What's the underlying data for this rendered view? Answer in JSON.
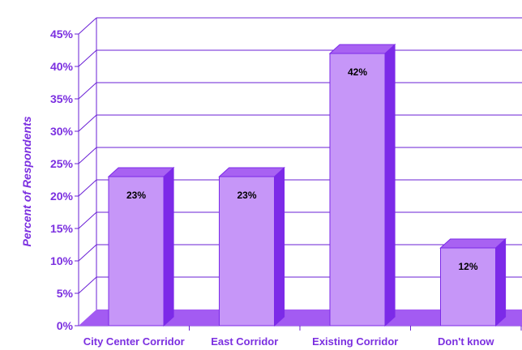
{
  "chart_data": {
    "type": "bar",
    "title": "",
    "xlabel": "",
    "ylabel": "Percent of Respondents",
    "categories": [
      "City Center Corridor",
      "East Corridor",
      "Existing Corridor",
      "Don't know"
    ],
    "values": [
      23,
      23,
      42,
      12
    ],
    "data_labels": [
      "23%",
      "23%",
      "42%",
      "12%"
    ],
    "ylim": [
      0,
      45
    ],
    "yticks": [
      0,
      5,
      10,
      15,
      20,
      25,
      30,
      35,
      40,
      45
    ],
    "ytick_labels": [
      "0%",
      "5%",
      "10%",
      "15%",
      "20%",
      "25%",
      "30%",
      "35%",
      "40%",
      "45%"
    ],
    "grid": true,
    "legend": "none",
    "style": "3d",
    "colors": {
      "axis_text": "#7B2FE0",
      "grid_line": "#6A1FD6",
      "bar_front": "#C696F8",
      "bar_side": "#7C2AE8",
      "bar_top": "#A862F2",
      "floor": "#A35BF2",
      "data_label_text": "#000000"
    }
  }
}
